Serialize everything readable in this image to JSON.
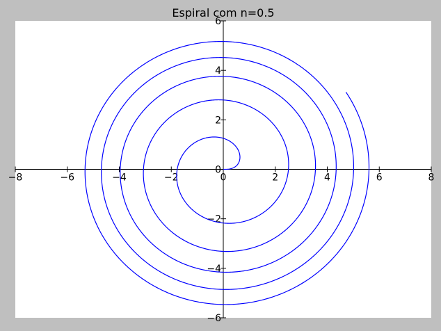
{
  "chart_data": {
    "type": "line",
    "title": "Espiral com n=0.5",
    "xlabel": "",
    "ylabel": "",
    "xlim": [
      -8,
      8
    ],
    "ylim": [
      -6,
      6
    ],
    "xticks": [
      -8,
      -6,
      -4,
      -2,
      0,
      2,
      4,
      6,
      8
    ],
    "yticks": [
      -6,
      -4,
      -2,
      0,
      2,
      4,
      6
    ],
    "xtick_labels": [
      "−8",
      "−6",
      "−4",
      "−2",
      "0",
      "2",
      "4",
      "6",
      "8"
    ],
    "ytick_labels": [
      "−6",
      "−4",
      "−2",
      "0",
      "2",
      "4",
      "6"
    ],
    "grid": false,
    "spines": "centered at origin",
    "series": [
      {
        "function": "r = theta^0.5 (Fermat spiral), x = r*cos(theta), y = r*sin(theta)",
        "theta_range": [
          0,
          32
        ],
        "color": "#0000ff"
      }
    ]
  },
  "colors": {
    "frame": "#bfbfbf",
    "plot_background": "#ffffff",
    "axis": "#000000",
    "curve": "#0000ff"
  }
}
